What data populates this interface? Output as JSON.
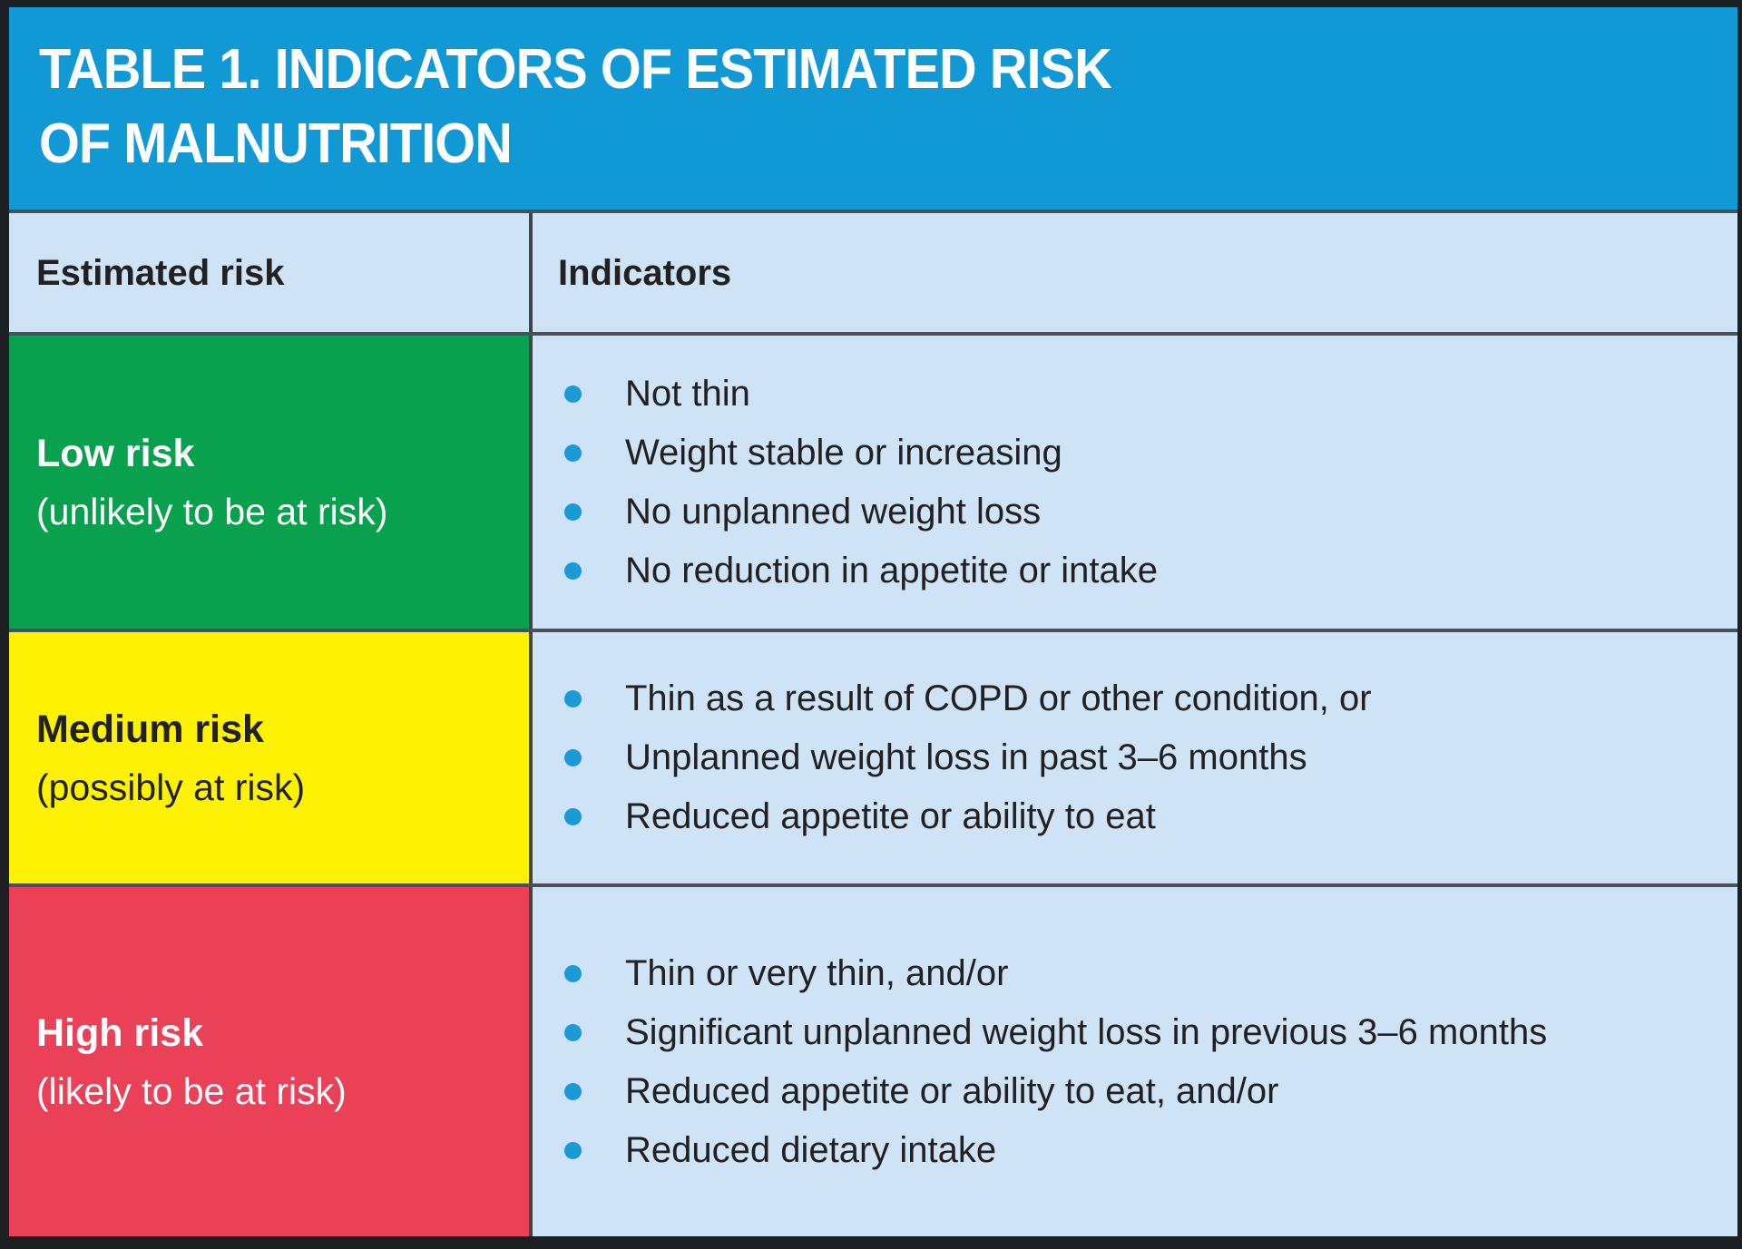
{
  "title": {
    "line1": "TABLE 1. INDICATORS OF ESTIMATED RISK",
    "line2": "OF MALNUTRITION"
  },
  "columns": {
    "risk": "Estimated risk",
    "indicators": "Indicators"
  },
  "rows": [
    {
      "level": "low",
      "label": "Low risk",
      "sublabel": "(unlikely to be at risk)",
      "row_color": "#0aa14e",
      "bullets": [
        "Not thin",
        "Weight stable or increasing",
        "No unplanned weight loss",
        "No reduction in appetite or intake"
      ]
    },
    {
      "level": "medium",
      "label": "Medium risk",
      "sublabel": "(possibly at risk)",
      "row_color": "#fdf203",
      "bullets": [
        "Thin as a result of COPD or other condition, or",
        "Unplanned weight loss in past 3–6 months",
        "Reduced appetite or ability to eat"
      ]
    },
    {
      "level": "high",
      "label": "High risk",
      "sublabel": "(likely to be at risk)",
      "row_color": "#ea4159",
      "bullets": [
        "Thin or very thin, and/or",
        "Significant unplanned weight loss in previous 3–6 months",
        "Reduced appetite or ability to eat, and/or",
        "Reduced dietary intake"
      ]
    }
  ],
  "colors": {
    "title_band_bg": "#1199d6",
    "cell_bg": "#cee3f5",
    "bullet_dot": "#1a9ad7",
    "text_dark": "#232022",
    "text_light": "#ffffff",
    "frame_border": "#1d2023",
    "grid_line": "#46535a"
  }
}
